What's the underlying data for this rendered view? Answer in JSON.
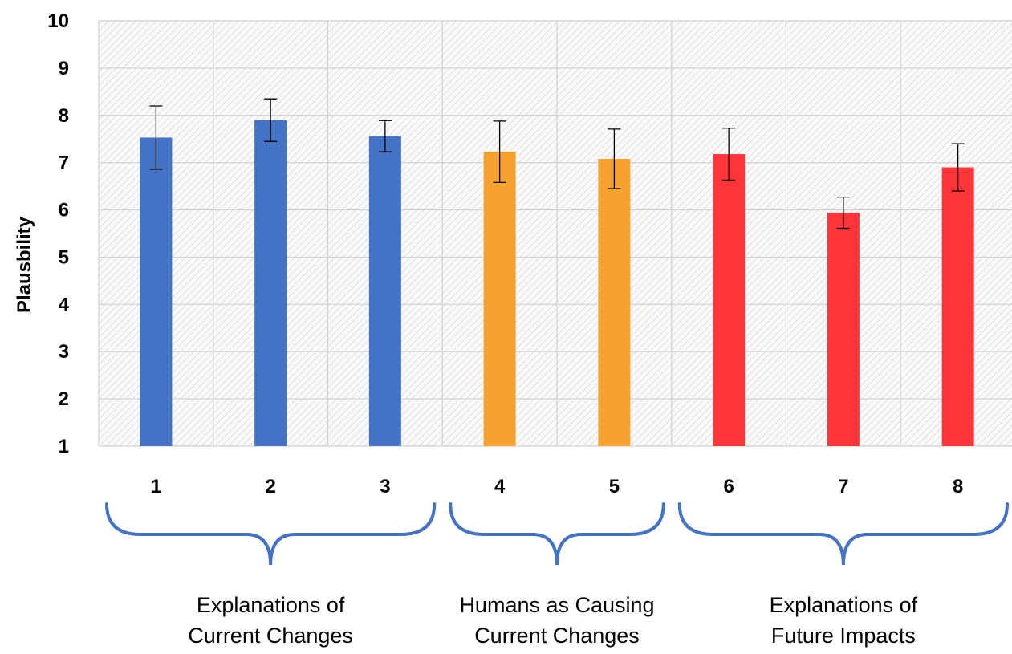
{
  "chart_data": {
    "type": "bar",
    "title": "",
    "xlabel": "",
    "ylabel": "Plausbility",
    "ylim": [
      1,
      10
    ],
    "yticks": [
      1,
      2,
      3,
      4,
      5,
      6,
      7,
      8,
      9,
      10
    ],
    "grid": true,
    "legend": "none",
    "categories": [
      "1",
      "2",
      "3",
      "4",
      "5",
      "6",
      "7",
      "8"
    ],
    "values": [
      7.53,
      7.9,
      7.56,
      7.23,
      7.08,
      7.18,
      5.94,
      6.9
    ],
    "errors": [
      0.67,
      0.45,
      0.33,
      0.65,
      0.63,
      0.55,
      0.33,
      0.5
    ],
    "colors": [
      "#4472C4",
      "#4472C4",
      "#4472C4",
      "#F7A12F",
      "#F7A12F",
      "#FF3539",
      "#FF3539",
      "#FF3539"
    ],
    "groups": [
      {
        "label_lines": [
          "Explanations of",
          "Current Changes"
        ],
        "categories": [
          "1",
          "2",
          "3"
        ],
        "color": "#4472C4"
      },
      {
        "label_lines": [
          "Humans as Causing",
          "Current Changes"
        ],
        "categories": [
          "4",
          "5"
        ],
        "color": "#F7A12F"
      },
      {
        "label_lines": [
          "Explanations of",
          "Future Impacts"
        ],
        "categories": [
          "6",
          "7",
          "8"
        ],
        "color": "#FF3539"
      }
    ]
  }
}
